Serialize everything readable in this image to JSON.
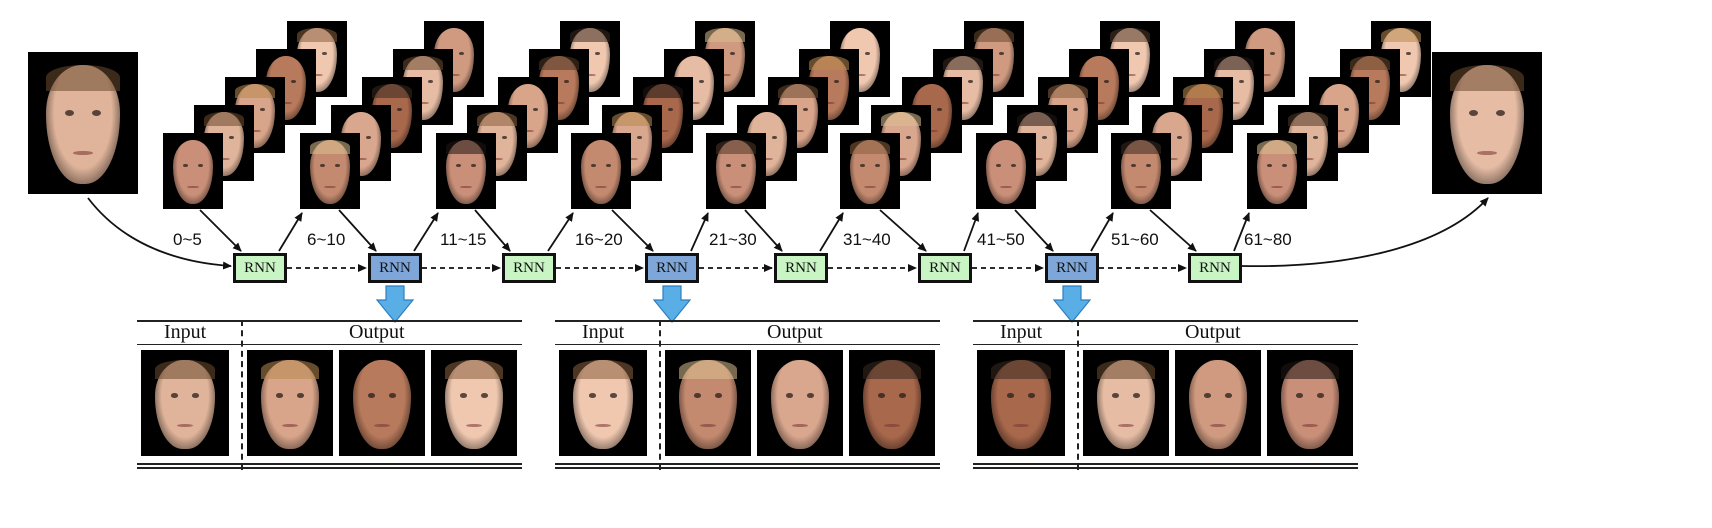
{
  "age_groups": [
    "0~5",
    "6~10",
    "11~15",
    "16~20",
    "21~30",
    "31~40",
    "41~50",
    "51~60",
    "61~80"
  ],
  "rnn_label": "RNN",
  "panels": [
    {
      "input_label": "Input",
      "output_label": "Output"
    },
    {
      "input_label": "Input",
      "output_label": "Output"
    },
    {
      "input_label": "Input",
      "output_label": "Output"
    }
  ],
  "colors": {
    "rnn_green": "#c9f5c4",
    "rnn_blue": "#7ea6d8",
    "drop_arrow": "#5aaee6"
  }
}
